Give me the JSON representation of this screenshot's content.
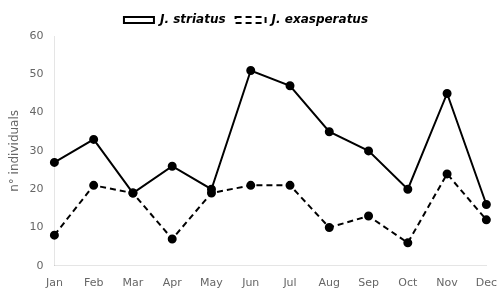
{
  "chart_data": {
    "type": "line",
    "ylabel": "n° individuals",
    "categories": [
      "Jan",
      "Feb",
      "Mar",
      "Apr",
      "May",
      "Jun",
      "Jul",
      "Aug",
      "Sep",
      "Oct",
      "Nov",
      "Dec"
    ],
    "series": [
      {
        "name": "J. striatus",
        "color": "#000000",
        "line_style": "solid",
        "marker": "circle",
        "values": [
          27,
          33,
          19,
          26,
          20,
          51,
          47,
          35,
          30,
          20,
          45,
          16
        ]
      },
      {
        "name": "J. exasperatus",
        "color": "#000000",
        "line_style": "dashed",
        "marker": "circle",
        "values": [
          8,
          21,
          19,
          7,
          19,
          21,
          21,
          10,
          13,
          6,
          24,
          12
        ]
      }
    ],
    "ylim": [
      0,
      60
    ],
    "yticks": [
      0,
      10,
      20,
      30,
      40,
      50,
      60
    ],
    "grid": false,
    "legend": "top"
  }
}
